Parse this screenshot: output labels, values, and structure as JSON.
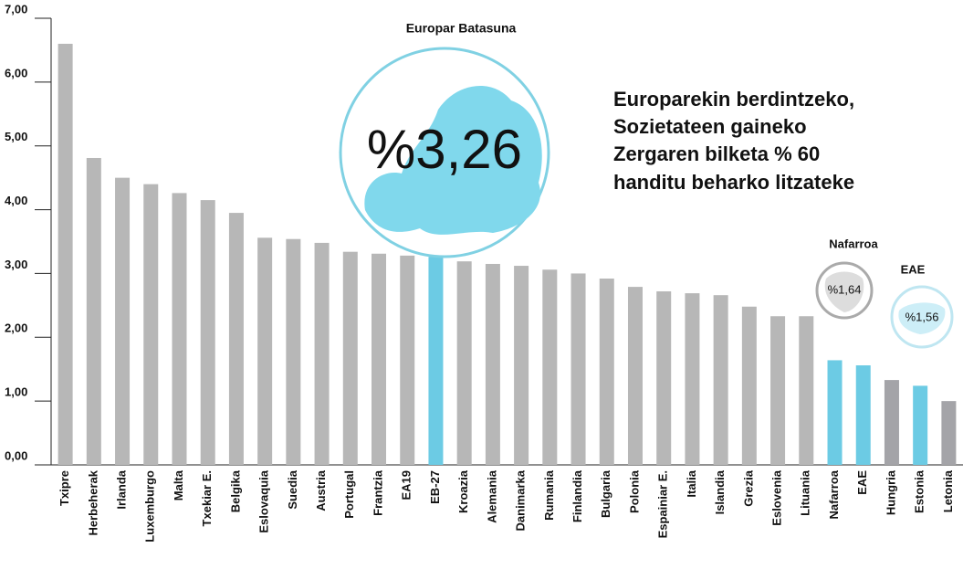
{
  "chart_data": {
    "type": "bar",
    "categories": [
      "Txipre",
      "Herbeherak",
      "Irlanda",
      "Luxemburgo",
      "Malta",
      "Txekiar E.",
      "Belgika",
      "Eslovaquia",
      "Suedia",
      "Austria",
      "Portugal",
      "Frantzia",
      "EA19",
      "EB-27",
      "Kroazia",
      "Alemania",
      "Danimarka",
      "Rumania",
      "Finlandia",
      "Bulgaria",
      "Polonia",
      "Espainiar E.",
      "Italia",
      "Islandia",
      "Grezia",
      "Eslovenia",
      "Lituania",
      "Nafarroa",
      "EAE",
      "Hungria",
      "Estonia",
      "Letonia"
    ],
    "values": [
      6.6,
      4.81,
      4.5,
      4.4,
      4.26,
      4.15,
      3.95,
      3.56,
      3.54,
      3.48,
      3.34,
      3.31,
      3.28,
      3.26,
      3.19,
      3.15,
      3.12,
      3.06,
      3.0,
      2.92,
      2.79,
      2.72,
      2.69,
      2.66,
      2.48,
      2.33,
      2.33,
      1.64,
      1.56,
      1.33,
      1.24,
      1.0
    ],
    "colors": [
      "#b7b7b7",
      "#b7b7b7",
      "#b7b7b7",
      "#b7b7b7",
      "#b7b7b7",
      "#b7b7b7",
      "#b7b7b7",
      "#b7b7b7",
      "#b7b7b7",
      "#b7b7b7",
      "#b7b7b7",
      "#b7b7b7",
      "#b7b7b7",
      "#6ccbe4",
      "#b7b7b7",
      "#b7b7b7",
      "#b7b7b7",
      "#b7b7b7",
      "#b7b7b7",
      "#b7b7b7",
      "#b7b7b7",
      "#b7b7b7",
      "#b7b7b7",
      "#b7b7b7",
      "#b7b7b7",
      "#b7b7b7",
      "#b7b7b7",
      "#6ccbe4",
      "#6ccbe4",
      "#a4a4a8",
      "#6ccbe4",
      "#a4a4a8"
    ],
    "ylim": [
      0,
      7
    ],
    "yticks": [
      {
        "value": 0,
        "label": "0,00"
      },
      {
        "value": 1,
        "label": "1,00"
      },
      {
        "value": 2,
        "label": "2,00"
      },
      {
        "value": 3,
        "label": "3,00"
      },
      {
        "value": 4,
        "label": "4,00"
      },
      {
        "value": 5,
        "label": "5,00"
      },
      {
        "value": 6,
        "label": "6,00"
      },
      {
        "value": 7,
        "label": "7,00"
      }
    ],
    "headline": [
      "Europarekin berdintzeko,",
      "Sozietateen gaineko",
      "Zergaren bilketa % 60",
      "handitu beharko litzateke"
    ],
    "annotations": [
      {
        "title": "Europar Batasuna",
        "label": "%3,26"
      },
      {
        "title": "Nafarroa",
        "label": "%1,64"
      },
      {
        "title": "EAE",
        "label": "%1,56"
      }
    ]
  }
}
